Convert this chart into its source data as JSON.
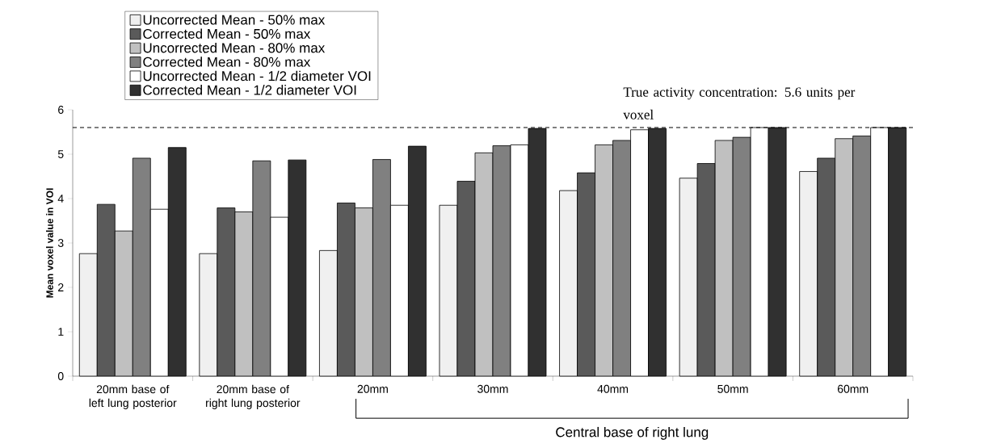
{
  "chart_data": {
    "type": "bar",
    "ylabel": "Mean voxel value in VOI",
    "categories": [
      "20mm base of left lung posterior",
      "20mm base of right lung posterior",
      "20mm",
      "30mm",
      "40mm",
      "50mm",
      "60mm"
    ],
    "series": [
      {
        "name": "Uncorrected Mean - 50% max",
        "color": "#f0f0f0",
        "values": [
          2.76,
          2.76,
          2.83,
          3.85,
          4.18,
          4.46,
          4.61
        ]
      },
      {
        "name": "Corrected Mean - 50% max",
        "color": "#5a5a5a",
        "values": [
          3.87,
          3.79,
          3.9,
          4.39,
          4.58,
          4.79,
          4.91
        ]
      },
      {
        "name": "Uncorrected Mean - 80% max",
        "color": "#c0c0c0",
        "values": [
          3.27,
          3.7,
          3.79,
          5.03,
          5.21,
          5.31,
          5.35
        ]
      },
      {
        "name": "Corrected Mean - 80% max",
        "color": "#808080",
        "values": [
          4.91,
          4.85,
          4.88,
          5.19,
          5.31,
          5.38,
          5.41
        ]
      },
      {
        "name": "Uncorrected Mean - 1/2 diameter VOI",
        "color": "#ffffff",
        "values": [
          3.76,
          3.58,
          3.85,
          5.21,
          5.55,
          5.6,
          5.6
        ]
      },
      {
        "name": "Corrected Mean - 1/2 diameter VOI",
        "color": "#303030",
        "values": [
          5.15,
          4.87,
          5.18,
          5.58,
          5.58,
          5.6,
          5.6
        ]
      }
    ],
    "ylim": [
      0,
      6
    ],
    "yticks": [
      0,
      1,
      2,
      3,
      4,
      5,
      6
    ],
    "legend": "top left",
    "ref_lines": [
      {
        "axis": "y",
        "value": 5.6,
        "label": "True activity concentration: 5.6 units per voxel",
        "line_style": "dashed",
        "color": "#000000"
      }
    ],
    "annotations": [
      "Central base of right lung"
    ]
  }
}
